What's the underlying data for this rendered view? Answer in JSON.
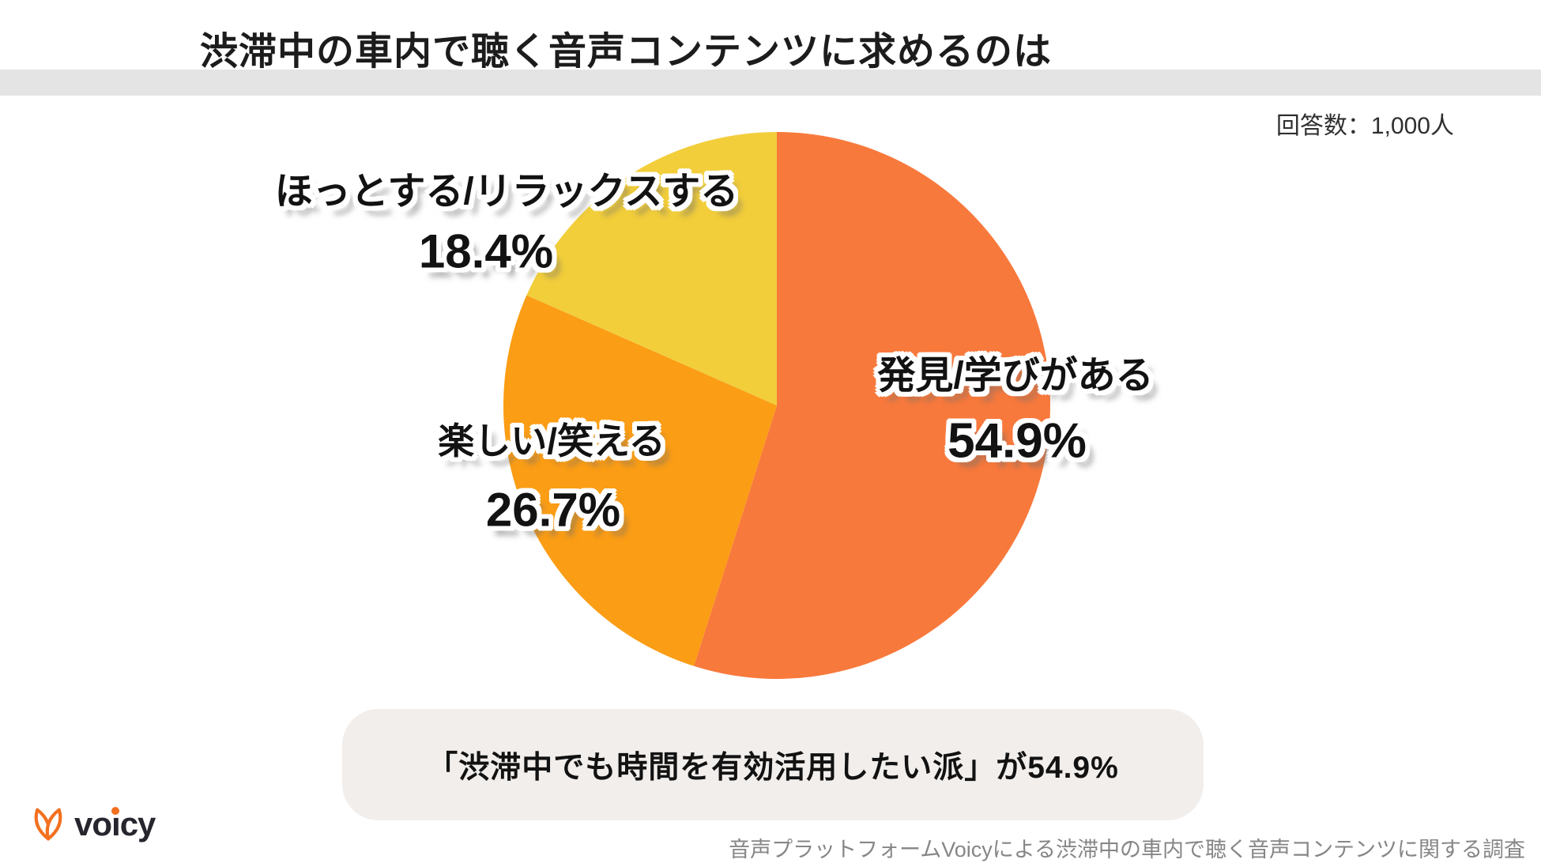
{
  "title": "渋滞中の車内で聴く音声コンテンツに求めるのは",
  "respondents_label": "回答数：1,000人",
  "chart_data": {
    "type": "pie",
    "title": "渋滞中の車内で聴く音声コンテンツに求めるのは",
    "start_angle": "12-oclock",
    "direction": "clockwise",
    "total": 100.0,
    "slices": [
      {
        "label": "発見/学びがある",
        "value": 54.9,
        "display": "54.9%",
        "color": "#F8793C"
      },
      {
        "label": "楽しい/笑える",
        "value": 26.7,
        "display": "26.7%",
        "color": "#FB9D15"
      },
      {
        "label": "ほっとする/リラックスする",
        "value": 18.4,
        "display": "18.4%",
        "color": "#F2CE3B"
      }
    ]
  },
  "callout": {
    "text": "「渋滞中でも時間を有効活用したい派」が54.9%"
  },
  "footer": {
    "logo": {
      "text": "voicy",
      "part1": "vo",
      "part2": "ı",
      "part3": "cy",
      "accent_color": "#f3701f"
    },
    "source": "音声プラットフォームVoicyによる渋滞中の車内で聴く音声コンテンツに関する調査"
  },
  "colors": {
    "title_band": "#e5e4e4",
    "callout_bg": "#f2eeec",
    "text_dark": "#1c1c1c",
    "source_gray": "#868686"
  }
}
